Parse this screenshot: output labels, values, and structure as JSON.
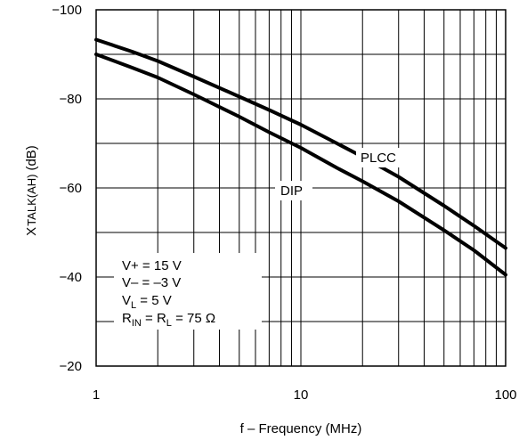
{
  "chart_data": {
    "type": "line",
    "xlabel": "f – Frequency (MHz)",
    "ylabel_main": "X",
    "ylabel_sub": "TALK(AH)",
    "ylabel_unit": "(dB)",
    "x_scale": "log",
    "xlim": [
      1,
      100
    ],
    "ylim": [
      -100,
      -20
    ],
    "x_ticks": [
      1,
      10,
      100
    ],
    "x_tick_labels": [
      "1",
      "10",
      "100"
    ],
    "y_ticks": [
      -100,
      -80,
      -60,
      -40,
      -20
    ],
    "y_tick_labels": [
      "−100",
      "−80",
      "−60",
      "−40",
      "−20"
    ],
    "grid": true,
    "series": [
      {
        "name": "PLCC",
        "x": [
          1,
          1.5,
          2,
          3,
          5,
          7,
          10,
          15,
          20,
          30,
          50,
          70,
          100
        ],
        "y": [
          -93.3,
          -90.6,
          -88.5,
          -85.0,
          -80.5,
          -77.5,
          -74.2,
          -70.0,
          -67.0,
          -62.5,
          -56.0,
          -51.5,
          -46.5
        ]
      },
      {
        "name": "DIP",
        "x": [
          1,
          1.5,
          2,
          3,
          5,
          7,
          10,
          15,
          20,
          30,
          50,
          70,
          100
        ],
        "y": [
          -90.0,
          -87.0,
          -84.8,
          -81.0,
          -76.0,
          -72.5,
          -69.0,
          -64.5,
          -61.5,
          -57.0,
          -50.5,
          -46.0,
          -40.5
        ]
      }
    ],
    "conditions": {
      "line1": "V+ = 15 V",
      "line2": "V– = –3 V",
      "line3_main": "V",
      "line3_sub": "L",
      "line3_rest": " = 5 V",
      "line4_a": "R",
      "line4_a_sub": "IN",
      "line4_b": " = R",
      "line4_b_sub": "L",
      "line4_c": " = 75 Ω"
    }
  }
}
